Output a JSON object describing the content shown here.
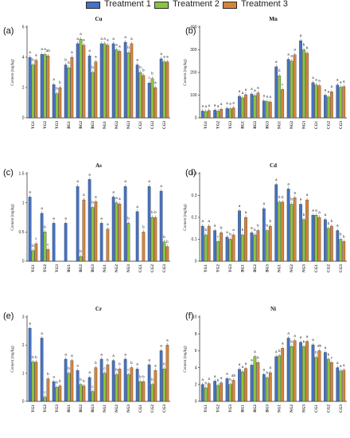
{
  "legend": [
    {
      "label": "Treatment 1",
      "color": "#4472c4"
    },
    {
      "label": "Treatment 2",
      "color": "#8bc53f"
    },
    {
      "label": "Treatment 3",
      "color": "#d6843a"
    }
  ],
  "chart_data": [
    {
      "panel": "(a)",
      "title": "Cu",
      "type": "bar",
      "ylabel": "Content (mg/kg)",
      "ylim": [
        0,
        6
      ],
      "yticks": [
        0,
        2,
        4,
        6
      ],
      "categories": [
        "YG1",
        "YG2",
        "YG3",
        "BG1",
        "BG2",
        "BG3",
        "NG1",
        "NG2",
        "NG3",
        "CG1",
        "CG2",
        "CG3"
      ],
      "series": [
        {
          "values": [
            4.0,
            4.2,
            2.2,
            3.5,
            4.9,
            4.1,
            4.9,
            4.9,
            5.0,
            3.5,
            2.3,
            3.9
          ]
        },
        {
          "values": [
            3.5,
            4.2,
            1.6,
            3.3,
            5.2,
            3.0,
            4.9,
            4.5,
            4.3,
            3.0,
            2.6,
            3.7
          ]
        },
        {
          "values": [
            3.8,
            4.1,
            2.0,
            4.0,
            4.8,
            3.7,
            4.8,
            4.4,
            4.9,
            2.8,
            2.0,
            3.7
          ]
        }
      ],
      "letters": [
        [
          "a",
          "a",
          "a",
          "b",
          "a",
          "a",
          "a",
          "a",
          "a",
          "a",
          "c",
          "a"
        ],
        [
          "b",
          "a",
          "b",
          "b",
          "a",
          "b",
          "a",
          "a",
          "b",
          "b",
          "b",
          "a"
        ],
        [
          "a",
          "ab",
          "b",
          "a",
          "a",
          "a",
          "a",
          "a",
          "a",
          "b",
          "a",
          "a"
        ]
      ]
    },
    {
      "panel": "(b)",
      "title": "Mn",
      "type": "bar",
      "ylabel": "Content (mg/kg)",
      "ylim": [
        0,
        400
      ],
      "yticks": [
        0,
        100,
        200,
        300,
        400
      ],
      "categories": [
        "YG1",
        "YG2",
        "YG3",
        "BG1",
        "BG2",
        "BG3",
        "NG1",
        "NG2",
        "NG3",
        "CG1",
        "CG2",
        "CG3"
      ],
      "series": [
        {
          "values": [
            30,
            34,
            42,
            95,
            105,
            75,
            225,
            258,
            340,
            155,
            100,
            145
          ]
        },
        {
          "values": [
            28,
            30,
            40,
            88,
            98,
            72,
            185,
            250,
            300,
            145,
            92,
            135
          ]
        },
        {
          "values": [
            32,
            38,
            44,
            102,
            110,
            70,
            125,
            278,
            285,
            142,
            115,
            138
          ]
        }
      ],
      "letters": [
        [
          "a",
          "a",
          "a",
          "a",
          "a",
          "a",
          "a",
          "a",
          "a",
          "a",
          "a",
          "a"
        ],
        [
          "a",
          "a",
          "a",
          "a",
          "a",
          "a",
          "b",
          "a",
          "b",
          "a",
          "a",
          "a"
        ],
        [
          "a",
          "a",
          "a",
          "a",
          "a",
          "a",
          "c",
          "a",
          "b",
          "a",
          "a",
          "a"
        ]
      ]
    },
    {
      "panel": "(c)",
      "title": "As",
      "type": "bar",
      "ylabel": "Content (mg/kg)",
      "ylim": [
        0,
        1.5
      ],
      "yticks": [
        0.0,
        0.5,
        1.0,
        1.5
      ],
      "categories": [
        "YG1",
        "YG2",
        "YG3",
        "BG1",
        "BG2",
        "BG3",
        "NG1",
        "NG2",
        "NG3",
        "CG1",
        "CG2",
        "CG3"
      ],
      "series": [
        {
          "values": [
            1.1,
            0.82,
            0.65,
            0.65,
            1.28,
            1.4,
            0.65,
            1.1,
            1.28,
            0.85,
            1.28,
            1.2
          ]
        },
        {
          "values": [
            0.18,
            0.5,
            0,
            0,
            0.08,
            0.92,
            0,
            1.0,
            0.65,
            0,
            0.75,
            0.33
          ]
        },
        {
          "values": [
            0.3,
            0.2,
            0,
            0,
            1.05,
            1.02,
            0.55,
            0.98,
            0,
            0.5,
            0.75,
            0.25
          ]
        }
      ],
      "letters": [
        [
          "a",
          "a",
          "a",
          "a",
          "a",
          "a",
          "a",
          "a",
          "a",
          "a",
          "a",
          "a"
        ],
        [
          "b",
          "b",
          "",
          "",
          "b",
          "b",
          "",
          "a",
          "b",
          "",
          "b",
          "b"
        ],
        [
          "c",
          "c",
          "",
          "",
          "a",
          "a",
          "a",
          "a",
          "",
          "b",
          "b",
          "b"
        ]
      ]
    },
    {
      "panel": "(d)",
      "title": "Cd",
      "type": "bar",
      "ylabel": "Content (mg/kg)",
      "ylim": [
        0,
        0.4
      ],
      "yticks": [
        0.0,
        0.1,
        0.2,
        0.3,
        0.4
      ],
      "categories": [
        "YG1",
        "YG2",
        "YG3",
        "BG1",
        "BG2",
        "BG3",
        "NG1",
        "NG2",
        "NG3",
        "CG1",
        "CG2",
        "CG3"
      ],
      "series": [
        {
          "values": [
            0.16,
            0.14,
            0.11,
            0.23,
            0.13,
            0.24,
            0.35,
            0.33,
            0.26,
            0.21,
            0.19,
            0.14
          ]
        },
        {
          "values": [
            0.12,
            0.09,
            0.1,
            0.12,
            0.12,
            0.14,
            0.27,
            0.26,
            0.19,
            0.21,
            0.15,
            0.1
          ]
        },
        {
          "values": [
            0.16,
            0.13,
            0.12,
            0.2,
            0.14,
            0.16,
            0.27,
            0.29,
            0.28,
            0.2,
            0.16,
            0.09
          ]
        }
      ],
      "letters": [
        [
          "a",
          "a",
          "a",
          "a",
          "a",
          "a",
          "a",
          "a",
          "a",
          "a",
          "a",
          "a"
        ],
        [
          "b",
          "c",
          "b",
          "b",
          "b",
          "b",
          "b",
          "b",
          "b",
          "a",
          "b",
          "b"
        ],
        [
          "a",
          "b",
          "a",
          "a",
          "b",
          "b",
          "b",
          "a",
          "a",
          "a",
          "b",
          "b"
        ]
      ]
    },
    {
      "panel": "(e)",
      "title": "Cr",
      "type": "bar",
      "ylabel": "Content (mg/kg)",
      "ylim": [
        0,
        3
      ],
      "yticks": [
        0,
        1,
        2,
        3
      ],
      "categories": [
        "YG1",
        "YG2",
        "YG3",
        "BG1",
        "BG2",
        "BG3",
        "NG1",
        "NG2",
        "NG3",
        "CG1",
        "CG2",
        "CG3"
      ],
      "series": [
        {
          "values": [
            2.6,
            2.25,
            0.7,
            1.5,
            1.1,
            0.85,
            1.5,
            1.45,
            1.5,
            1.15,
            1.3,
            1.8
          ]
        },
        {
          "values": [
            1.4,
            0.15,
            0.5,
            1.0,
            0.6,
            0.35,
            1.0,
            0.95,
            0.95,
            0.7,
            0.6,
            1.15
          ]
        },
        {
          "values": [
            1.4,
            0.8,
            0.55,
            1.45,
            0.55,
            1.2,
            1.3,
            1.15,
            1.2,
            0.7,
            1.1,
            2.0
          ]
        }
      ],
      "letters": [
        [
          "a",
          "a",
          "a",
          "a",
          "a",
          "a",
          "a",
          "a",
          "a",
          "a",
          "a",
          "a"
        ],
        [
          "b",
          "c",
          "b",
          "b",
          "b",
          "c",
          "c",
          "b",
          "c",
          "b",
          "b",
          "b"
        ],
        [
          "b",
          "b",
          "b",
          "a",
          "b",
          "b",
          "b",
          "b",
          "b",
          "b",
          "a",
          "a"
        ]
      ]
    },
    {
      "panel": "(f)",
      "title": "Ni",
      "type": "bar",
      "ylabel": "Content (mg/kg)",
      "ylim": [
        0,
        10
      ],
      "yticks": [
        0,
        2,
        4,
        6,
        8,
        10
      ],
      "categories": [
        "YG1",
        "YG2",
        "YG3",
        "BG1",
        "BG2",
        "BG3",
        "NG1",
        "NG2",
        "NG3",
        "CG1",
        "CG2",
        "CG3"
      ],
      "series": [
        {
          "values": [
            2.0,
            2.4,
            2.7,
            3.8,
            4.3,
            3.2,
            5.3,
            7.5,
            7.0,
            6.7,
            5.8,
            4.0
          ]
        },
        {
          "values": [
            1.6,
            1.9,
            2.0,
            3.5,
            5.3,
            2.8,
            5.4,
            6.5,
            6.5,
            5.2,
            5.0,
            3.6
          ]
        },
        {
          "values": [
            2.1,
            2.2,
            2.5,
            3.9,
            4.6,
            3.4,
            6.3,
            7.2,
            7.1,
            6.0,
            4.6,
            3.7
          ]
        }
      ],
      "letters": [
        [
          "a",
          "a",
          "a",
          "a",
          "a",
          "a",
          "a",
          "a",
          "a",
          "a",
          "a",
          "a"
        ],
        [
          "b",
          "b",
          "b",
          "a",
          "a",
          "b",
          "b",
          "b",
          "b",
          "b",
          "b",
          "a"
        ],
        [
          "a",
          "a",
          "ab",
          "a",
          "b",
          "a",
          "a",
          "a",
          "a",
          "ab",
          "c",
          "a"
        ]
      ]
    }
  ]
}
